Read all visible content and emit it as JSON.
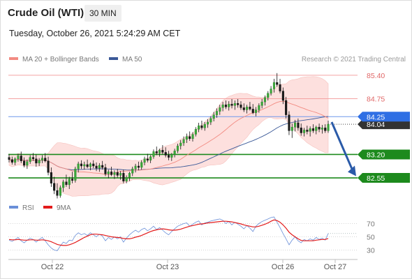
{
  "header": {
    "instrument": "Crude Oil (WTI)",
    "timeframe": "30 MIN",
    "timestamp": "Tuesday, October 26, 2021 5:24:29 AM CET"
  },
  "legend": {
    "items": [
      {
        "label": "MA 20 + Bollinger Bands",
        "color": "#f28b82"
      },
      {
        "label": "MA 50",
        "color": "#3b5998"
      }
    ],
    "credit": "Research © 2021 Trading Central"
  },
  "rsi_legend": {
    "items": [
      {
        "label": "RSI",
        "color": "#6a8fd8"
      },
      {
        "label": "9MA",
        "color": "#e31b1b"
      }
    ]
  },
  "chart_data": {
    "type": "candlestick",
    "x_tick_labels": [
      "Oct 22",
      "Oct 23",
      "Oct 26",
      "Oct 27"
    ],
    "price_axis": {
      "ylim": [
        81.95,
        85.65
      ]
    },
    "price_labels": [
      {
        "value": "85.40",
        "price": 85.4,
        "kind": "resistance",
        "color": "#e06666"
      },
      {
        "value": "84.75",
        "price": 84.75,
        "kind": "resistance",
        "color": "#e06666"
      },
      {
        "value": "84.25",
        "price": 84.25,
        "kind": "pivot",
        "color": "#2f6fe4"
      },
      {
        "value": "84.04",
        "price": 84.04,
        "kind": "last",
        "color": "#333333"
      },
      {
        "value": "83.20",
        "price": 83.2,
        "kind": "support",
        "color": "#1d8a1d"
      },
      {
        "value": "82.55",
        "price": 82.55,
        "kind": "support",
        "color": "#1d8a1d"
      }
    ],
    "forecast_arrow": {
      "from_price": 84.1,
      "to_price": 82.6
    },
    "candles": [
      [
        83.12,
        83.2,
        82.98,
        83.06
      ],
      [
        83.06,
        83.14,
        82.92,
        82.98
      ],
      [
        82.98,
        83.12,
        82.9,
        83.08
      ],
      [
        83.08,
        83.22,
        83.0,
        83.16
      ],
      [
        83.16,
        83.28,
        82.96,
        83.02
      ],
      [
        83.02,
        83.12,
        82.84,
        82.9
      ],
      [
        82.9,
        83.06,
        82.8,
        83.0
      ],
      [
        83.0,
        83.18,
        82.94,
        83.12
      ],
      [
        83.12,
        83.24,
        83.02,
        83.08
      ],
      [
        83.08,
        83.2,
        82.86,
        82.96
      ],
      [
        82.96,
        83.1,
        82.88,
        83.04
      ],
      [
        83.04,
        83.18,
        82.96,
        83.1
      ],
      [
        83.1,
        83.24,
        82.98,
        83.02
      ],
      [
        83.02,
        83.14,
        82.62,
        82.7
      ],
      [
        82.7,
        82.84,
        82.3,
        82.4
      ],
      [
        82.4,
        82.58,
        82.1,
        82.2
      ],
      [
        82.2,
        82.4,
        81.98,
        82.06
      ],
      [
        82.06,
        82.34,
        82.0,
        82.28
      ],
      [
        82.28,
        82.5,
        82.16,
        82.44
      ],
      [
        82.44,
        82.64,
        82.3,
        82.36
      ],
      [
        82.36,
        82.58,
        82.24,
        82.52
      ],
      [
        82.52,
        82.72,
        82.4,
        82.48
      ],
      [
        82.48,
        82.86,
        82.42,
        82.8
      ],
      [
        82.8,
        83.0,
        82.7,
        82.94
      ],
      [
        82.94,
        83.04,
        82.8,
        82.88
      ],
      [
        82.88,
        83.0,
        82.78,
        82.92
      ],
      [
        82.92,
        83.06,
        82.82,
        82.86
      ],
      [
        82.86,
        82.98,
        82.76,
        82.94
      ],
      [
        82.94,
        83.04,
        82.82,
        82.88
      ],
      [
        82.88,
        82.98,
        82.74,
        82.82
      ],
      [
        82.82,
        82.96,
        82.72,
        82.9
      ],
      [
        82.9,
        83.02,
        82.78,
        82.84
      ],
      [
        82.84,
        82.94,
        82.6,
        82.66
      ],
      [
        82.66,
        82.78,
        82.54,
        82.72
      ],
      [
        82.72,
        82.86,
        82.6,
        82.64
      ],
      [
        82.64,
        82.76,
        82.52,
        82.7
      ],
      [
        82.7,
        82.8,
        82.56,
        82.62
      ],
      [
        82.62,
        82.74,
        82.5,
        82.68
      ],
      [
        82.68,
        82.78,
        82.4,
        82.46
      ],
      [
        82.46,
        82.62,
        82.4,
        82.56
      ],
      [
        82.56,
        82.72,
        82.46,
        82.68
      ],
      [
        82.68,
        82.86,
        82.6,
        82.8
      ],
      [
        82.8,
        82.94,
        82.7,
        82.88
      ],
      [
        82.88,
        83.0,
        82.76,
        82.84
      ],
      [
        82.84,
        83.04,
        82.78,
        82.98
      ],
      [
        82.98,
        83.14,
        82.9,
        83.08
      ],
      [
        83.08,
        83.22,
        82.98,
        83.04
      ],
      [
        83.04,
        83.18,
        82.96,
        83.14
      ],
      [
        83.14,
        83.34,
        83.08,
        83.28
      ],
      [
        83.28,
        83.42,
        83.18,
        83.24
      ],
      [
        83.24,
        83.36,
        83.14,
        83.32
      ],
      [
        83.32,
        83.46,
        83.2,
        83.26
      ],
      [
        83.26,
        83.4,
        83.12,
        83.18
      ],
      [
        83.18,
        83.3,
        83.04,
        83.12
      ],
      [
        83.12,
        83.24,
        83.02,
        83.2
      ],
      [
        83.2,
        83.36,
        83.12,
        83.3
      ],
      [
        83.3,
        83.5,
        83.24,
        83.44
      ],
      [
        83.44,
        83.6,
        83.34,
        83.52
      ],
      [
        83.52,
        83.7,
        83.44,
        83.62
      ],
      [
        83.62,
        83.78,
        83.52,
        83.7
      ],
      [
        83.7,
        83.84,
        83.58,
        83.64
      ],
      [
        83.64,
        83.82,
        83.56,
        83.76
      ],
      [
        83.76,
        83.96,
        83.7,
        83.9
      ],
      [
        83.9,
        84.08,
        83.82,
        84.0
      ],
      [
        84.0,
        84.14,
        83.88,
        83.94
      ],
      [
        83.94,
        84.1,
        83.86,
        84.04
      ],
      [
        84.04,
        84.18,
        83.94,
        84.1
      ],
      [
        84.1,
        84.26,
        84.02,
        84.2
      ],
      [
        84.2,
        84.38,
        84.12,
        84.3
      ],
      [
        84.3,
        84.48,
        84.22,
        84.4
      ],
      [
        84.4,
        84.58,
        84.3,
        84.5
      ],
      [
        84.5,
        84.66,
        84.4,
        84.58
      ],
      [
        84.58,
        84.7,
        84.46,
        84.52
      ],
      [
        84.52,
        84.68,
        84.42,
        84.6
      ],
      [
        84.6,
        84.74,
        84.48,
        84.56
      ],
      [
        84.56,
        84.7,
        84.44,
        84.62
      ],
      [
        84.62,
        84.74,
        84.5,
        84.58
      ],
      [
        84.58,
        84.68,
        84.44,
        84.5
      ],
      [
        84.5,
        84.62,
        84.38,
        84.44
      ],
      [
        84.44,
        84.58,
        84.34,
        84.52
      ],
      [
        84.52,
        84.66,
        84.42,
        84.46
      ],
      [
        84.46,
        84.6,
        84.32,
        84.36
      ],
      [
        84.36,
        84.52,
        84.26,
        84.44
      ],
      [
        84.44,
        84.62,
        84.36,
        84.56
      ],
      [
        84.56,
        84.74,
        84.48,
        84.66
      ],
      [
        84.66,
        84.84,
        84.56,
        84.78
      ],
      [
        84.78,
        84.96,
        84.7,
        84.9
      ],
      [
        84.9,
        85.1,
        84.84,
        85.02
      ],
      [
        85.02,
        85.3,
        84.92,
        85.2
      ],
      [
        85.2,
        85.46,
        85.08,
        85.14
      ],
      [
        85.14,
        85.3,
        84.9,
        84.96
      ],
      [
        84.96,
        85.06,
        84.6,
        84.7
      ],
      [
        84.7,
        84.8,
        84.2,
        84.3
      ],
      [
        84.3,
        84.4,
        83.74,
        83.86
      ],
      [
        83.86,
        84.06,
        83.66,
        83.96
      ],
      [
        83.96,
        84.16,
        83.84,
        84.08
      ],
      [
        84.08,
        84.2,
        83.86,
        83.94
      ],
      [
        83.94,
        84.06,
        83.72,
        83.8
      ],
      [
        83.8,
        83.94,
        83.7,
        83.88
      ],
      [
        83.88,
        84.0,
        83.76,
        83.84
      ],
      [
        83.84,
        83.98,
        83.7,
        83.92
      ],
      [
        83.92,
        84.04,
        83.8,
        83.86
      ],
      [
        83.86,
        84.0,
        83.76,
        83.96
      ],
      [
        83.96,
        84.06,
        83.82,
        83.9
      ],
      [
        83.9,
        84.02,
        83.78,
        83.94
      ],
      [
        83.94,
        84.04,
        83.8,
        83.86
      ],
      [
        83.86,
        84.14,
        83.8,
        84.04
      ]
    ],
    "rsi_axis": {
      "ylim": [
        20,
        80
      ],
      "ticks": [
        70,
        50,
        30
      ]
    },
    "rsi_values": [
      45,
      43,
      46,
      49,
      44,
      41,
      45,
      48,
      46,
      42,
      46,
      49,
      44,
      38,
      33,
      30,
      29,
      36,
      42,
      40,
      45,
      44,
      52,
      56,
      53,
      55,
      52,
      56,
      53,
      50,
      54,
      51,
      44,
      49,
      46,
      50,
      47,
      50,
      42,
      48,
      53,
      57,
      60,
      57,
      61,
      63,
      59,
      62,
      66,
      61,
      64,
      60,
      56,
      53,
      58,
      62,
      66,
      68,
      70,
      71,
      66,
      69,
      72,
      74,
      68,
      71,
      72,
      74,
      75,
      76,
      77,
      75,
      70,
      73,
      68,
      72,
      69,
      66,
      62,
      67,
      63,
      58,
      66,
      70,
      73,
      75,
      77,
      79,
      80,
      72,
      64,
      55,
      47,
      38,
      45,
      50,
      44,
      41,
      46,
      44,
      47,
      45,
      49,
      46,
      48,
      45,
      55
    ],
    "rsi_ma_values": [
      46,
      45.5,
      45.5,
      46,
      45.5,
      45,
      45,
      45.5,
      45.5,
      45,
      45,
      45.5,
      45,
      44,
      42.5,
      40.5,
      38.5,
      37.5,
      37,
      37,
      38,
      39.5,
      41.5,
      44,
      46.5,
      49,
      51,
      53,
      54,
      54,
      53.5,
      53,
      52,
      51,
      50,
      49.5,
      49,
      48.5,
      47.5,
      47,
      47,
      48,
      49.5,
      50.5,
      52,
      54,
      56,
      58,
      59.5,
      60.5,
      61.5,
      62,
      61.5,
      60.5,
      60,
      60,
      60.5,
      61.5,
      63,
      64.5,
      66,
      67,
      68,
      69,
      69.5,
      70,
      71,
      71.5,
      72,
      72.5,
      73,
      73.5,
      73.5,
      73,
      72.5,
      71.5,
      70.5,
      69.5,
      68,
      67,
      66,
      65,
      65,
      66,
      67.5,
      69,
      71,
      73.5,
      75.5,
      74.5,
      72,
      68,
      63,
      57,
      53,
      50,
      47,
      44.5,
      44,
      44,
      44,
      44,
      45,
      45.5,
      46,
      46,
      47.5
    ]
  }
}
